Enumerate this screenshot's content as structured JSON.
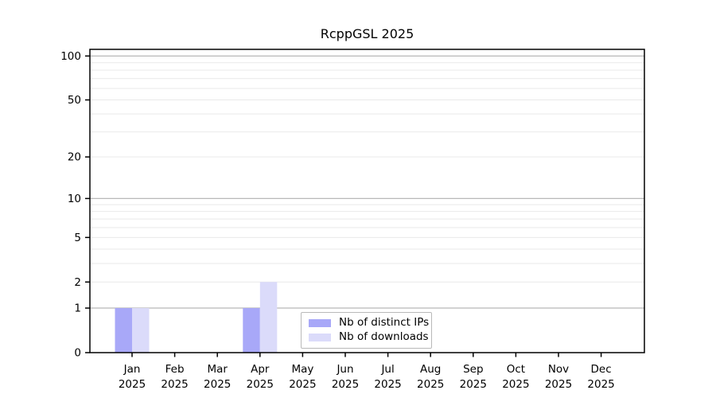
{
  "chart_data": {
    "type": "bar",
    "title": "RcppGSL 2025",
    "xlabel": "",
    "ylabel": "",
    "categories": [
      "Jan",
      "Feb",
      "Mar",
      "Apr",
      "May",
      "Jun",
      "Jul",
      "Aug",
      "Sep",
      "Oct",
      "Nov",
      "Dec"
    ],
    "category_year": "2025",
    "series": [
      {
        "name": "Nb of distinct IPs",
        "color": "#a8a8f8",
        "values": [
          1,
          0,
          0,
          1,
          0,
          0,
          0,
          0,
          0,
          0,
          0,
          0
        ]
      },
      {
        "name": "Nb of downloads",
        "color": "#dbdbfa",
        "values": [
          1,
          0,
          0,
          2,
          0,
          0,
          0,
          0,
          0,
          0,
          0,
          0
        ]
      }
    ],
    "yscale": "log1p",
    "ylim": [
      0,
      111
    ],
    "yticks": [
      0,
      1,
      2,
      5,
      10,
      20,
      50,
      100
    ],
    "grid_major_at": [
      1,
      10,
      100
    ],
    "grid_minor_at": [
      2,
      3,
      4,
      5,
      6,
      7,
      8,
      9,
      20,
      30,
      40,
      50,
      60,
      70,
      80,
      90
    ],
    "grid": true,
    "legend_position": "bottom-center-inside"
  },
  "colors": {
    "background": "#ffffff",
    "text": "#000000",
    "axis": "#000000",
    "grid_major": "#b8b8b8",
    "grid_minor": "#e9e9e9",
    "legend_border": "#b9b9b9"
  }
}
